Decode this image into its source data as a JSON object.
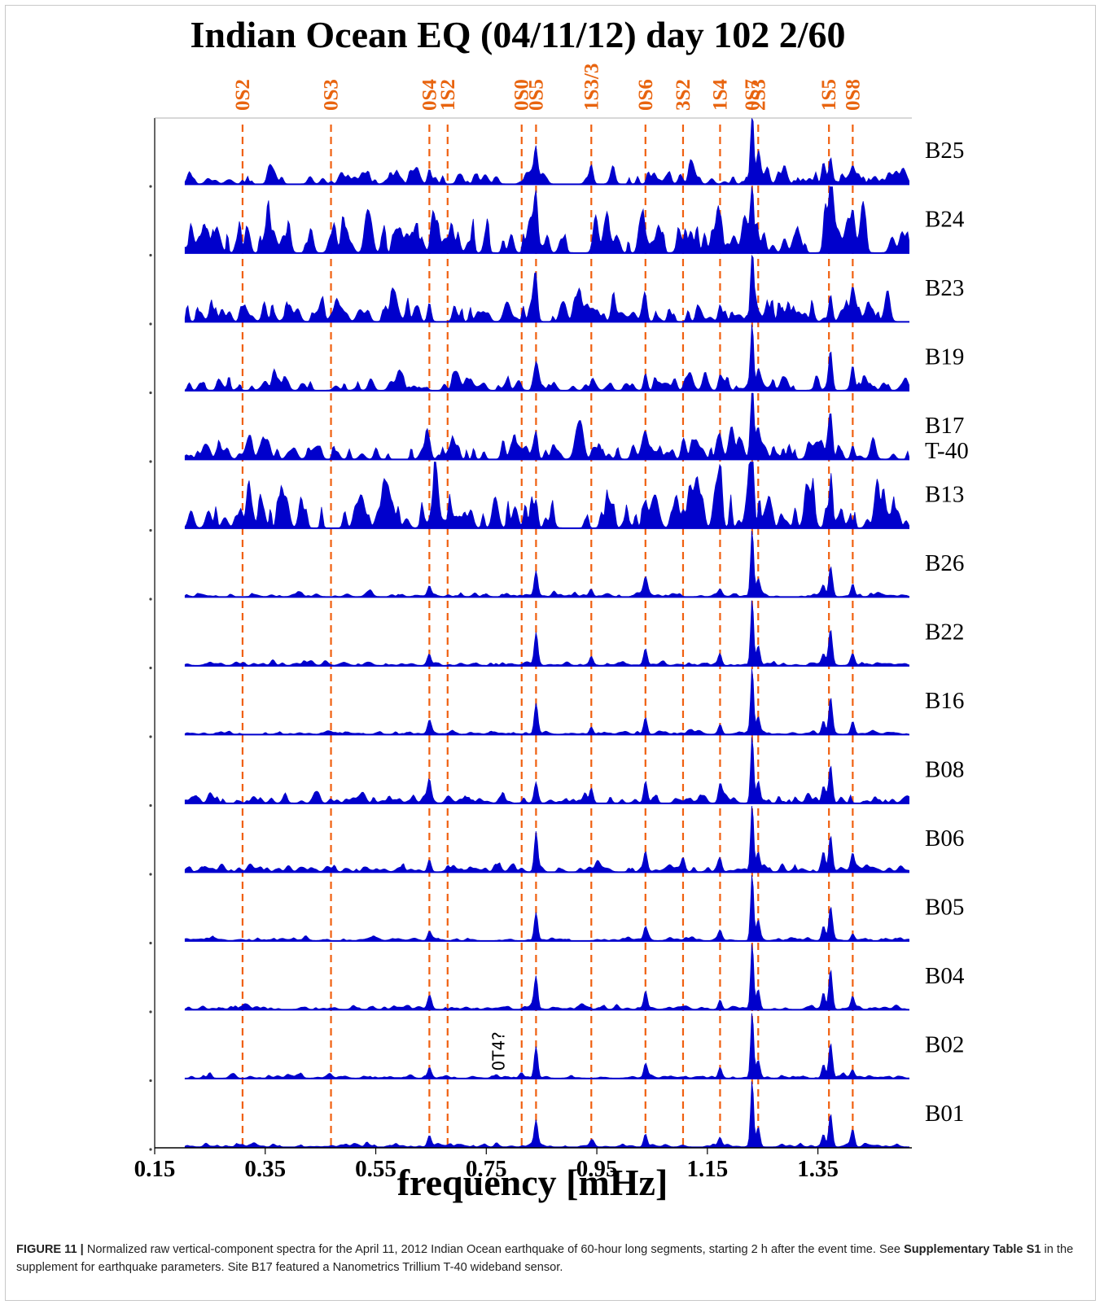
{
  "chart_data": {
    "type": "area",
    "title": "Indian Ocean EQ (04/11/12) day 102  2/60",
    "xlabel": "frequency [mHz]",
    "xlim": [
      0.15,
      1.52
    ],
    "xticks": [
      "0.15",
      "0.35",
      "0.55",
      "0.75",
      "0.95",
      "1.15",
      "1.35"
    ],
    "modes": [
      {
        "label": "0S2",
        "f": 0.309
      },
      {
        "label": "0S3",
        "f": 0.469
      },
      {
        "label": "0S4",
        "f": 0.647
      },
      {
        "label": "1S2",
        "f": 0.68
      },
      {
        "label": "0S0",
        "f": 0.814
      },
      {
        "label": "0S5",
        "f": 0.84
      },
      {
        "label": "1S3/3",
        "f": 0.94
      },
      {
        "label": "0S6",
        "f": 1.038
      },
      {
        "label": "3S2",
        "f": 1.106
      },
      {
        "label": "1S4",
        "f": 1.173
      },
      {
        "label": "0S7",
        "f": 1.231
      },
      {
        "label": "2S3",
        "f": 1.242
      },
      {
        "label": "1S5",
        "f": 1.37
      },
      {
        "label": "0S8",
        "f": 1.413
      }
    ],
    "annotation": {
      "text": "0T4?",
      "f": 0.768,
      "station": "B02"
    },
    "series": [
      {
        "name": "B25",
        "noise": 0.12,
        "peaks": [
          [
            0.647,
            0.22
          ],
          [
            0.84,
            0.3
          ],
          [
            0.94,
            0.25
          ],
          [
            1.231,
            1.0
          ],
          [
            1.242,
            0.25
          ],
          [
            1.36,
            0.32
          ],
          [
            1.373,
            0.4
          ],
          [
            1.413,
            0.18
          ]
        ]
      },
      {
        "name": "B24",
        "noise": 0.34,
        "peaks": [
          [
            0.84,
            0.7
          ],
          [
            1.231,
            1.0
          ],
          [
            1.373,
            0.68
          ],
          [
            1.413,
            0.45
          ]
        ]
      },
      {
        "name": "B23",
        "noise": 0.2,
        "peaks": [
          [
            0.647,
            0.28
          ],
          [
            0.84,
            0.48
          ],
          [
            1.038,
            0.28
          ],
          [
            1.173,
            0.25
          ],
          [
            1.231,
            1.0
          ],
          [
            1.373,
            0.4
          ],
          [
            1.413,
            0.38
          ]
        ]
      },
      {
        "name": "B19",
        "noise": 0.11,
        "peaks": [
          [
            0.84,
            0.35
          ],
          [
            1.038,
            0.25
          ],
          [
            1.173,
            0.22
          ],
          [
            1.231,
            1.0
          ],
          [
            1.242,
            0.3
          ],
          [
            1.373,
            0.55
          ],
          [
            1.413,
            0.32
          ]
        ]
      },
      {
        "name": "B17",
        "label2": "T-40",
        "noise": 0.18,
        "peaks": [
          [
            0.647,
            0.18
          ],
          [
            0.84,
            0.4
          ],
          [
            1.038,
            0.18
          ],
          [
            1.106,
            0.15
          ],
          [
            1.173,
            0.2
          ],
          [
            1.231,
            1.0
          ],
          [
            1.242,
            0.3
          ],
          [
            1.373,
            0.4
          ],
          [
            1.413,
            0.2
          ]
        ]
      },
      {
        "name": "B13",
        "noise": 0.32,
        "peaks": [
          [
            0.84,
            0.42
          ],
          [
            1.038,
            0.4
          ],
          [
            1.173,
            0.48
          ],
          [
            1.231,
            1.0
          ],
          [
            1.373,
            0.58
          ]
        ]
      },
      {
        "name": "B26",
        "noise": 0.03,
        "peaks": [
          [
            0.647,
            0.14
          ],
          [
            0.84,
            0.38
          ],
          [
            0.94,
            0.1
          ],
          [
            1.038,
            0.25
          ],
          [
            1.173,
            0.1
          ],
          [
            1.231,
            1.0
          ],
          [
            1.242,
            0.2
          ],
          [
            1.36,
            0.15
          ],
          [
            1.373,
            0.45
          ],
          [
            1.413,
            0.18
          ]
        ]
      },
      {
        "name": "B22",
        "noise": 0.03,
        "peaks": [
          [
            0.647,
            0.16
          ],
          [
            0.84,
            0.48
          ],
          [
            0.94,
            0.12
          ],
          [
            1.038,
            0.25
          ],
          [
            1.173,
            0.15
          ],
          [
            1.231,
            1.0
          ],
          [
            1.242,
            0.28
          ],
          [
            1.36,
            0.16
          ],
          [
            1.373,
            0.52
          ],
          [
            1.413,
            0.12
          ]
        ]
      },
      {
        "name": "B16",
        "noise": 0.025,
        "peaks": [
          [
            0.647,
            0.2
          ],
          [
            0.84,
            0.45
          ],
          [
            0.94,
            0.1
          ],
          [
            1.038,
            0.24
          ],
          [
            1.173,
            0.12
          ],
          [
            1.231,
            1.0
          ],
          [
            1.242,
            0.26
          ],
          [
            1.36,
            0.2
          ],
          [
            1.373,
            0.55
          ],
          [
            1.413,
            0.18
          ]
        ]
      },
      {
        "name": "B08",
        "noise": 0.07,
        "peaks": [
          [
            0.647,
            0.3
          ],
          [
            0.84,
            0.3
          ],
          [
            0.94,
            0.22
          ],
          [
            1.038,
            0.3
          ],
          [
            1.173,
            0.25
          ],
          [
            1.231,
            1.0
          ],
          [
            1.242,
            0.25
          ],
          [
            1.36,
            0.25
          ],
          [
            1.373,
            0.55
          ]
        ]
      },
      {
        "name": "B06",
        "noise": 0.06,
        "peaks": [
          [
            0.647,
            0.18
          ],
          [
            0.84,
            0.55
          ],
          [
            1.038,
            0.3
          ],
          [
            1.106,
            0.18
          ],
          [
            1.173,
            0.18
          ],
          [
            1.231,
            1.0
          ],
          [
            1.242,
            0.3
          ],
          [
            1.36,
            0.3
          ],
          [
            1.373,
            0.5
          ],
          [
            1.413,
            0.25
          ]
        ]
      },
      {
        "name": "B05",
        "noise": 0.025,
        "peaks": [
          [
            0.647,
            0.13
          ],
          [
            0.84,
            0.42
          ],
          [
            1.038,
            0.2
          ],
          [
            1.173,
            0.12
          ],
          [
            1.231,
            1.0
          ],
          [
            1.242,
            0.3
          ],
          [
            1.36,
            0.2
          ],
          [
            1.373,
            0.5
          ],
          [
            1.413,
            0.1
          ]
        ]
      },
      {
        "name": "B04",
        "noise": 0.03,
        "peaks": [
          [
            0.647,
            0.14
          ],
          [
            0.84,
            0.48
          ],
          [
            1.038,
            0.25
          ],
          [
            1.173,
            0.14
          ],
          [
            1.231,
            1.0
          ],
          [
            1.242,
            0.3
          ],
          [
            1.36,
            0.25
          ],
          [
            1.373,
            0.6
          ],
          [
            1.413,
            0.15
          ]
        ]
      },
      {
        "name": "B02",
        "noise": 0.025,
        "peaks": [
          [
            0.25,
            0.08
          ],
          [
            0.647,
            0.14
          ],
          [
            0.768,
            0.05
          ],
          [
            0.814,
            0.07
          ],
          [
            0.84,
            0.45
          ],
          [
            1.038,
            0.22
          ],
          [
            1.173,
            0.16
          ],
          [
            1.231,
            1.0
          ],
          [
            1.242,
            0.26
          ],
          [
            1.36,
            0.2
          ],
          [
            1.373,
            0.5
          ],
          [
            1.413,
            0.1
          ]
        ]
      },
      {
        "name": "B01",
        "noise": 0.025,
        "peaks": [
          [
            0.647,
            0.14
          ],
          [
            0.768,
            0.05
          ],
          [
            0.84,
            0.4
          ],
          [
            0.94,
            0.08
          ],
          [
            1.038,
            0.18
          ],
          [
            1.173,
            0.14
          ],
          [
            1.231,
            1.0
          ],
          [
            1.242,
            0.3
          ],
          [
            1.36,
            0.18
          ],
          [
            1.373,
            0.48
          ],
          [
            1.413,
            0.25
          ]
        ]
      }
    ]
  },
  "caption": {
    "lead": "FIGURE 11 |",
    "text1": " Normalized raw vertical-component spectra for the April 11, 2012 Indian Ocean earthquake of 60-hour long segments, starting 2 h after the event time. See ",
    "ref": "Supplementary Table S1",
    "text2": " in the supplement for earthquake parameters. Site B17 featured a Nanometrics Trillium T-40 wideband sensor."
  },
  "colors": {
    "spectrum": "#0000cc",
    "mode_line": "#f06010",
    "mode_label": "#e8640f",
    "axis": "#000000"
  }
}
